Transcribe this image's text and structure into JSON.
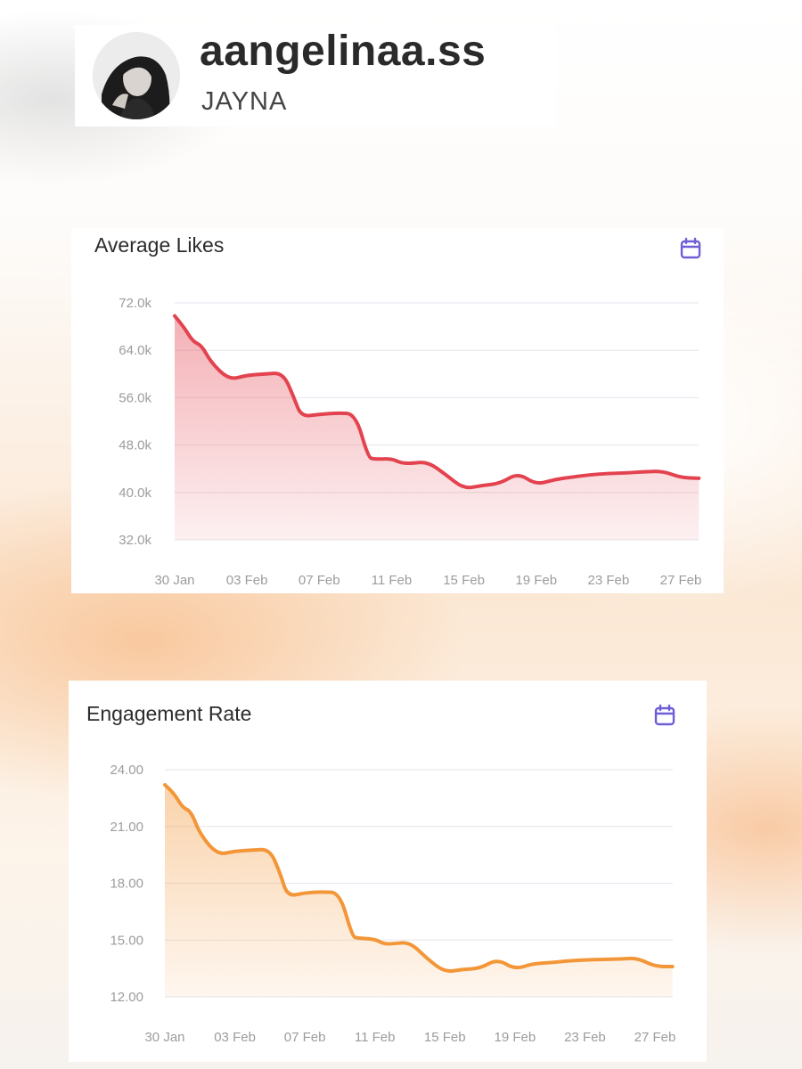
{
  "profile": {
    "username": "aangelinaa.ss",
    "display_name": "JAYNA"
  },
  "colors": {
    "likes_line": "#e3434f",
    "engagement_line": "#f39638",
    "calendar_icon": "#6f5fd6",
    "grid": "#e6e6ee",
    "tick": "#9c9c9c"
  },
  "chart_data": [
    {
      "type": "area",
      "title": "Average Likes",
      "icon": "calendar-icon",
      "ylim": [
        32000,
        72000
      ],
      "yticks": [
        "72.0k",
        "64.0k",
        "56.0k",
        "48.0k",
        "40.0k",
        "32.0k"
      ],
      "ytick_values": [
        72000,
        64000,
        56000,
        48000,
        40000,
        32000
      ],
      "xticks": [
        "30 Jan",
        "03 Feb",
        "07 Feb",
        "11 Feb",
        "15 Feb",
        "19 Feb",
        "23 Feb",
        "27 Feb"
      ],
      "xtick_days": [
        0,
        4,
        8,
        12,
        16,
        20,
        24,
        28
      ],
      "series": [
        {
          "name": "Average Likes",
          "x": [
            0,
            0.5,
            1,
            1.5,
            2,
            3,
            4,
            5,
            6,
            6.6,
            7,
            8,
            9,
            10,
            10.7,
            11,
            12,
            12.5,
            13,
            14,
            15,
            16,
            17,
            18,
            19,
            20,
            21,
            22,
            23,
            24,
            25,
            26,
            27,
            28,
            29
          ],
          "values": [
            69800,
            68000,
            65500,
            64800,
            62000,
            59000,
            59800,
            60000,
            60200,
            56000,
            52800,
            53200,
            53400,
            53300,
            46000,
            45600,
            45700,
            45000,
            44900,
            45200,
            43000,
            40600,
            41200,
            41500,
            43300,
            41300,
            42200,
            42600,
            43000,
            43200,
            43300,
            43500,
            43600,
            42500,
            42400
          ]
        }
      ]
    },
    {
      "type": "area",
      "title": "Engagement Rate",
      "icon": "calendar-icon",
      "ylim": [
        12,
        24
      ],
      "yticks": [
        "24.00",
        "21.00",
        "18.00",
        "15.00",
        "12.00"
      ],
      "ytick_values": [
        24,
        21,
        18,
        15,
        12
      ],
      "xticks": [
        "30 Jan",
        "03 Feb",
        "07 Feb",
        "11 Feb",
        "15 Feb",
        "19 Feb",
        "23 Feb",
        "27 Feb"
      ],
      "xtick_days": [
        0,
        4,
        8,
        12,
        16,
        20,
        24,
        28
      ],
      "series": [
        {
          "name": "Engagement Rate",
          "x": [
            0,
            0.5,
            1,
            1.5,
            2,
            3,
            4,
            5,
            6,
            6.6,
            7,
            8,
            9,
            10,
            10.7,
            11,
            12,
            12.5,
            13,
            14,
            15,
            16,
            17,
            18,
            19,
            20,
            21,
            22,
            23,
            24,
            25,
            26,
            27,
            28,
            29
          ],
          "values": [
            23.2,
            22.8,
            22.0,
            21.8,
            20.6,
            19.5,
            19.7,
            19.75,
            19.8,
            18.5,
            17.3,
            17.5,
            17.55,
            17.5,
            15.2,
            15.1,
            15.05,
            14.8,
            14.8,
            14.9,
            14.0,
            13.3,
            13.45,
            13.5,
            14.0,
            13.45,
            13.75,
            13.8,
            13.9,
            13.95,
            13.98,
            14.0,
            14.05,
            13.6,
            13.6
          ]
        }
      ]
    }
  ]
}
